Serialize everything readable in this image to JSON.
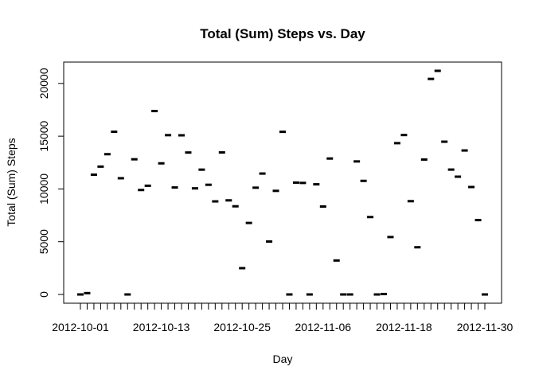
{
  "chart_data": {
    "type": "scatter",
    "title": "Total (Sum) Steps vs. Day",
    "xlabel": "Day",
    "ylabel": "Total (Sum) Steps",
    "x_tick_labels": [
      "2012-10-01",
      "2012-10-13",
      "2012-10-25",
      "2012-11-06",
      "2012-11-18",
      "2012-11-30"
    ],
    "y_ticks": [
      0,
      5000,
      10000,
      15000,
      20000
    ],
    "x": [
      "2012-10-01",
      "2012-10-02",
      "2012-10-03",
      "2012-10-04",
      "2012-10-05",
      "2012-10-06",
      "2012-10-07",
      "2012-10-08",
      "2012-10-09",
      "2012-10-10",
      "2012-10-11",
      "2012-10-12",
      "2012-10-13",
      "2012-10-14",
      "2012-10-15",
      "2012-10-16",
      "2012-10-17",
      "2012-10-18",
      "2012-10-19",
      "2012-10-20",
      "2012-10-21",
      "2012-10-22",
      "2012-10-23",
      "2012-10-24",
      "2012-10-25",
      "2012-10-26",
      "2012-10-27",
      "2012-10-28",
      "2012-10-29",
      "2012-10-30",
      "2012-10-31",
      "2012-11-01",
      "2012-11-02",
      "2012-11-03",
      "2012-11-04",
      "2012-11-05",
      "2012-11-06",
      "2012-11-07",
      "2012-11-08",
      "2012-11-09",
      "2012-11-10",
      "2012-11-11",
      "2012-11-12",
      "2012-11-13",
      "2012-11-14",
      "2012-11-15",
      "2012-11-16",
      "2012-11-17",
      "2012-11-18",
      "2012-11-19",
      "2012-11-20",
      "2012-11-21",
      "2012-11-22",
      "2012-11-23",
      "2012-11-24",
      "2012-11-25",
      "2012-11-26",
      "2012-11-27",
      "2012-11-28",
      "2012-11-29",
      "2012-11-30"
    ],
    "y": [
      0,
      126,
      11352,
      12116,
      13294,
      15420,
      11015,
      0,
      12811,
      9900,
      10304,
      17382,
      12426,
      15098,
      10139,
      15084,
      13452,
      10056,
      11829,
      10395,
      8821,
      13460,
      8918,
      8355,
      2492,
      6778,
      10119,
      11458,
      5018,
      9819,
      15414,
      0,
      10600,
      10571,
      0,
      10439,
      8334,
      12883,
      3219,
      0,
      0,
      12608,
      10765,
      7336,
      0,
      41,
      5441,
      14339,
      15110,
      8841,
      4472,
      12787,
      20427,
      21194,
      14478,
      11834,
      11162,
      13646,
      10183,
      7047,
      0
    ],
    "xlim": [
      "2012-10-01",
      "2012-11-30"
    ],
    "ylim": [
      0,
      21194
    ],
    "grid": false,
    "marker": "horizontal-dash",
    "color": "#000000"
  }
}
